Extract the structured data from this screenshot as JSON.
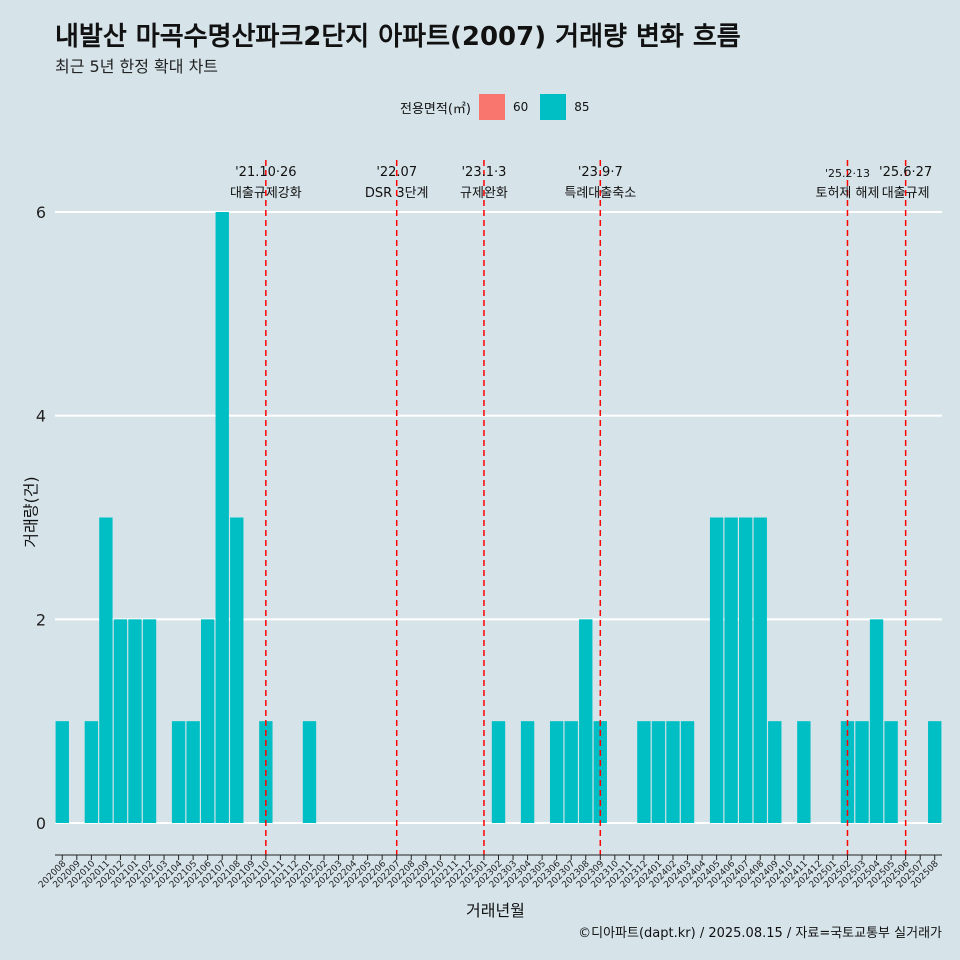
{
  "title": "내발산 마곡수명산파크2단지 아파트(2007) 거래량 변화 흐름",
  "subtitle": "최근 5년 한정 확대 차트",
  "legend": {
    "title": "전용면적(㎡)",
    "items": [
      {
        "label": "60",
        "color": "#f8766d"
      },
      {
        "label": "85",
        "color": "#00bfc4"
      }
    ]
  },
  "caption": "©디아파트(dapt.kr) / 2025.08.15 / 자료=국토교통부 실거래가",
  "chart_data": {
    "type": "bar",
    "xlabel": "거래년월",
    "ylabel": "거래량(건)",
    "ylim": [
      0,
      6
    ],
    "yticks": [
      0,
      2,
      4,
      6
    ],
    "grid": true,
    "legend_position": "top",
    "categories": [
      "202008",
      "202009",
      "202010",
      "202011",
      "202012",
      "202101",
      "202102",
      "202103",
      "202104",
      "202105",
      "202106",
      "202107",
      "202108",
      "202109",
      "202110",
      "202111",
      "202112",
      "202201",
      "202202",
      "202203",
      "202204",
      "202205",
      "202206",
      "202207",
      "202208",
      "202209",
      "202210",
      "202211",
      "202212",
      "202301",
      "202302",
      "202303",
      "202304",
      "202305",
      "202306",
      "202307",
      "202308",
      "202309",
      "202310",
      "202311",
      "202312",
      "202401",
      "202402",
      "202403",
      "202404",
      "202405",
      "202406",
      "202407",
      "202408",
      "202409",
      "202410",
      "202411",
      "202412",
      "202501",
      "202502",
      "202503",
      "202504",
      "202505",
      "202506",
      "202507",
      "202508"
    ],
    "series": [
      {
        "name": "85",
        "color": "#00bfc4",
        "values": [
          1,
          0,
          1,
          3,
          2,
          2,
          2,
          0,
          1,
          1,
          2,
          6,
          3,
          0,
          1,
          0,
          0,
          1,
          0,
          0,
          0,
          0,
          0,
          0,
          0,
          0,
          0,
          0,
          0,
          0,
          1,
          0,
          1,
          0,
          1,
          1,
          2,
          1,
          0,
          0,
          1,
          1,
          1,
          1,
          0,
          3,
          3,
          3,
          3,
          1,
          0,
          1,
          0,
          0,
          1,
          1,
          2,
          1,
          0,
          0,
          1
        ]
      }
    ],
    "annotations": [
      {
        "at": "202110",
        "date": "'21.10·26",
        "label": "대출규제강화"
      },
      {
        "at": "202207",
        "date": "'22.07",
        "label": "DSR 3단계"
      },
      {
        "at": "202301",
        "date": "'23.1·3",
        "label": "규제완화"
      },
      {
        "at": "202309",
        "date": "'23.9·7",
        "label": "특례대출축소"
      },
      {
        "at": "202502",
        "date": "'25.2·13",
        "label": "토허제 해제"
      },
      {
        "at": "202506",
        "date": "'25.6·27",
        "label": "대출규제"
      }
    ]
  }
}
